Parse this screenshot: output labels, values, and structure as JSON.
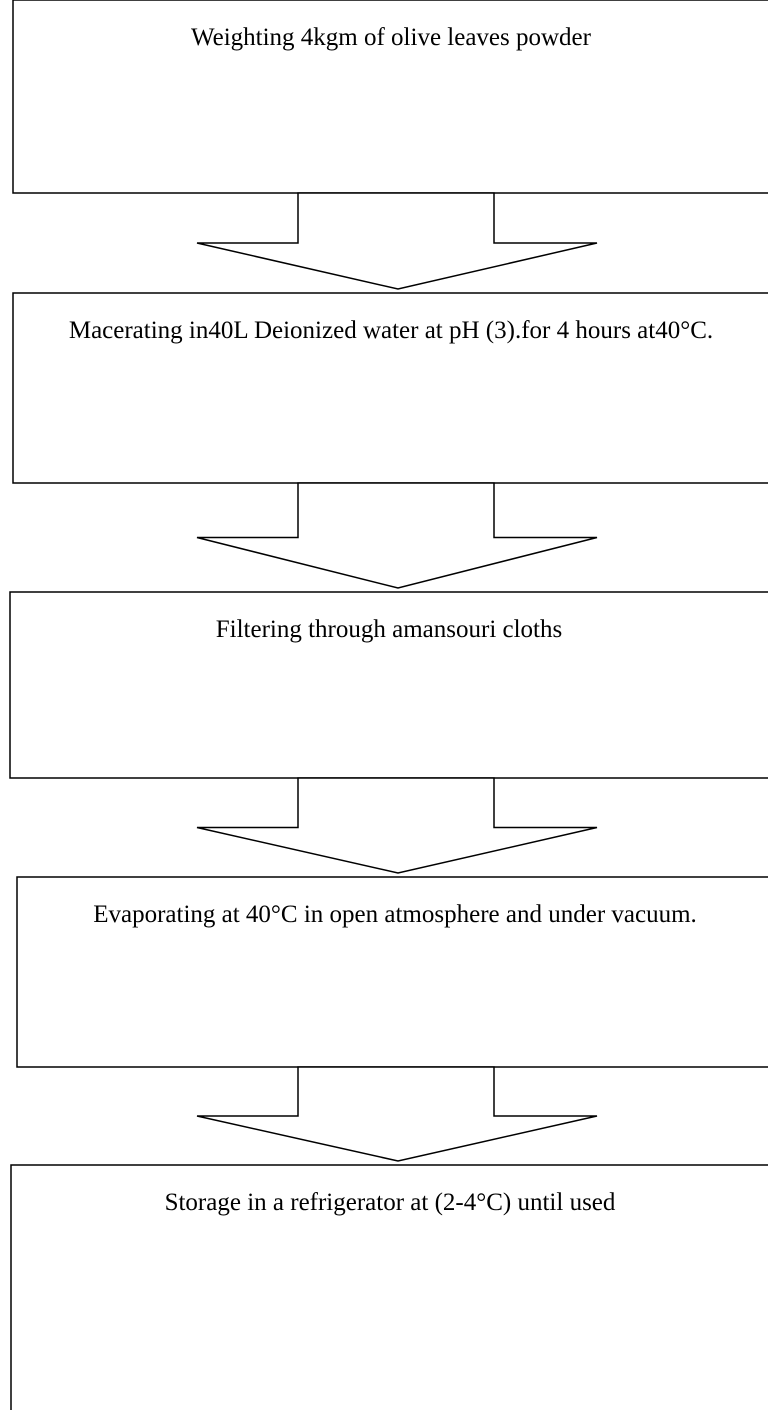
{
  "nodes": [
    {
      "label": "Weighting 4kgm of olive leaves powder"
    },
    {
      "label": "Macerating in40L Deionized water at pH (3).for 4 hours at40°C."
    },
    {
      "label": "Filtering through amansouri cloths"
    },
    {
      "label": "Evaporating at 40°C in open atmosphere and under vacuum."
    },
    {
      "label": "Storage in a refrigerator at (2-4°C) until used"
    }
  ]
}
